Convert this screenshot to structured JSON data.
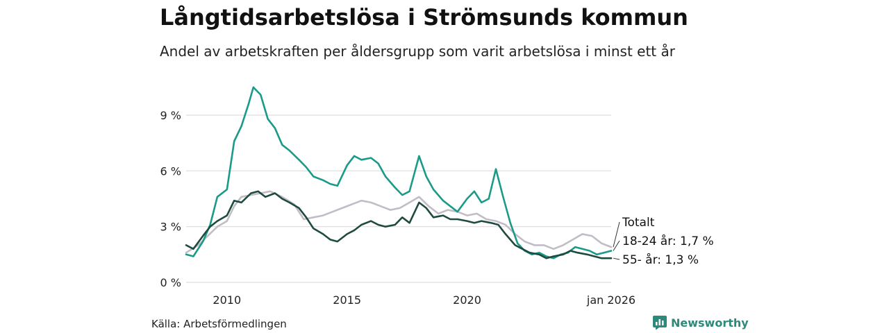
{
  "title": "Långtidsarbetslösa i Strömsunds kommun",
  "subtitle": "Andel av arbetskraften per åldersgrupp som varit arbetslösa i minst ett år",
  "source": "Källa: Arbetsförmedlingen",
  "brand": "Newsworthy",
  "colors": {
    "total": "#c2bcc6",
    "youth": "#1a9a88",
    "senior": "#1f4a40",
    "grid": "#dddddd",
    "brand": "#2b8a7a"
  },
  "chart_data": {
    "type": "line",
    "title": "Långtidsarbetslösa i Strömsunds kommun",
    "ylabel": "",
    "ylim": [
      0,
      10.5
    ],
    "xlim": [
      2008.3,
      2026.0
    ],
    "y_ticks": [
      0,
      3,
      6,
      9
    ],
    "y_tick_labels": [
      "0 %",
      "3 %",
      "6 %",
      "9 %"
    ],
    "x_ticks": [
      2010,
      2015,
      2020,
      2026
    ],
    "x_tick_labels": [
      "2010",
      "2015",
      "2020",
      "jan 2026"
    ],
    "series": [
      {
        "name": "Totalt",
        "label": "Totalt",
        "color": "#c2bcc6",
        "x": [
          2008.3,
          2008.8,
          2009.2,
          2009.6,
          2010.0,
          2010.3,
          2010.6,
          2011.0,
          2011.4,
          2011.8,
          2012.3,
          2012.8,
          2013.2,
          2013.6,
          2014.0,
          2014.4,
          2014.8,
          2015.2,
          2015.6,
          2016.0,
          2016.4,
          2016.8,
          2017.2,
          2017.6,
          2018.0,
          2018.4,
          2018.8,
          2019.2,
          2019.6,
          2020.0,
          2020.4,
          2020.8,
          2021.2,
          2021.6,
          2022.0,
          2022.4,
          2022.8,
          2023.2,
          2023.6,
          2024.0,
          2024.4,
          2024.8,
          2025.2,
          2025.6,
          2026.0
        ],
        "y": [
          1.6,
          2.0,
          2.5,
          3.0,
          3.3,
          4.1,
          4.6,
          4.7,
          4.8,
          4.9,
          4.6,
          4.2,
          3.4,
          3.5,
          3.6,
          3.8,
          4.0,
          4.2,
          4.4,
          4.3,
          4.1,
          3.9,
          4.0,
          4.3,
          4.6,
          4.1,
          3.7,
          3.9,
          3.8,
          3.6,
          3.7,
          3.4,
          3.3,
          3.1,
          2.6,
          2.2,
          2.0,
          2.0,
          1.8,
          2.0,
          2.3,
          2.6,
          2.5,
          2.1,
          1.9
        ]
      },
      {
        "name": "18-24 år",
        "label": "18-24 år: 1,7 %",
        "color": "#1a9a88",
        "x": [
          2008.3,
          2008.6,
          2009.0,
          2009.3,
          2009.6,
          2010.0,
          2010.3,
          2010.6,
          2010.9,
          2011.1,
          2011.4,
          2011.7,
          2012.0,
          2012.3,
          2012.6,
          2013.0,
          2013.3,
          2013.6,
          2014.0,
          2014.3,
          2014.6,
          2015.0,
          2015.3,
          2015.6,
          2016.0,
          2016.3,
          2016.6,
          2017.0,
          2017.3,
          2017.6,
          2018.0,
          2018.3,
          2018.6,
          2019.0,
          2019.3,
          2019.6,
          2020.0,
          2020.3,
          2020.6,
          2020.9,
          2021.2,
          2021.5,
          2021.8,
          2022.1,
          2022.4,
          2022.7,
          2023.0,
          2023.3,
          2023.6,
          2023.9,
          2024.2,
          2024.5,
          2024.8,
          2025.1,
          2025.4,
          2025.7,
          2026.0
        ],
        "y": [
          1.5,
          1.4,
          2.2,
          3.1,
          4.6,
          5.0,
          7.6,
          8.4,
          9.6,
          10.5,
          10.1,
          8.8,
          8.3,
          7.4,
          7.1,
          6.6,
          6.2,
          5.7,
          5.5,
          5.3,
          5.2,
          6.3,
          6.8,
          6.6,
          6.7,
          6.4,
          5.7,
          5.1,
          4.7,
          4.9,
          6.8,
          5.7,
          5.0,
          4.4,
          4.1,
          3.8,
          4.5,
          4.9,
          4.3,
          4.5,
          6.1,
          4.6,
          3.2,
          2.1,
          1.7,
          1.5,
          1.6,
          1.4,
          1.3,
          1.5,
          1.6,
          1.9,
          1.8,
          1.7,
          1.5,
          1.6,
          1.7
        ]
      },
      {
        "name": "55- år",
        "label": "55- år: 1,3 %",
        "color": "#1f4a40",
        "x": [
          2008.3,
          2008.6,
          2009.0,
          2009.3,
          2009.6,
          2010.0,
          2010.3,
          2010.6,
          2011.0,
          2011.3,
          2011.6,
          2012.0,
          2012.3,
          2012.6,
          2013.0,
          2013.3,
          2013.6,
          2014.0,
          2014.3,
          2014.6,
          2015.0,
          2015.3,
          2015.6,
          2016.0,
          2016.3,
          2016.6,
          2017.0,
          2017.3,
          2017.6,
          2018.0,
          2018.3,
          2018.6,
          2019.0,
          2019.3,
          2019.6,
          2020.0,
          2020.3,
          2020.6,
          2021.0,
          2021.3,
          2021.6,
          2022.0,
          2022.3,
          2022.6,
          2023.0,
          2023.3,
          2023.6,
          2024.0,
          2024.3,
          2024.6,
          2025.0,
          2025.3,
          2025.6,
          2026.0
        ],
        "y": [
          2.0,
          1.8,
          2.5,
          3.0,
          3.3,
          3.6,
          4.4,
          4.3,
          4.8,
          4.9,
          4.6,
          4.8,
          4.5,
          4.3,
          4.0,
          3.5,
          2.9,
          2.6,
          2.3,
          2.2,
          2.6,
          2.8,
          3.1,
          3.3,
          3.1,
          3.0,
          3.1,
          3.5,
          3.2,
          4.3,
          4.0,
          3.5,
          3.6,
          3.4,
          3.4,
          3.3,
          3.2,
          3.3,
          3.2,
          3.1,
          2.6,
          2.0,
          1.8,
          1.6,
          1.5,
          1.3,
          1.4,
          1.5,
          1.7,
          1.6,
          1.5,
          1.4,
          1.3,
          1.3
        ]
      }
    ]
  }
}
